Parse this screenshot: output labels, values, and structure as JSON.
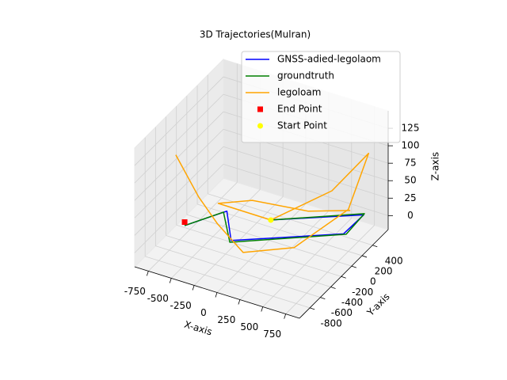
{
  "chart_data": {
    "type": "line3d",
    "title": "3D Trajectories(Mulran)",
    "x_label": "X-axis",
    "y_label": "Y-axis",
    "z_label": "Z-axis",
    "xlim": [
      -900,
      900
    ],
    "ylim": [
      -1000,
      700
    ],
    "zlim": [
      -20,
      150
    ],
    "xticks": [
      -750,
      -500,
      -250,
      0,
      250,
      500,
      750
    ],
    "yticks": [
      -800,
      -600,
      -400,
      -200,
      0,
      200,
      400
    ],
    "zticks": [
      0,
      25,
      50,
      75,
      100,
      125
    ],
    "grid": true,
    "legend": "upper right",
    "series": [
      {
        "name": "GNSS-adied-legolaom",
        "color": "#0000ff",
        "kind": "line",
        "x": [
          -40,
          690,
          680,
          -200,
          -480,
          -711
        ],
        "y": [
          100,
          600,
          230,
          -380,
          30,
          -374
        ],
        "z": [
          0,
          0,
          0,
          0,
          0,
          0
        ]
      },
      {
        "name": "groundtruth",
        "color": "#008000",
        "kind": "line",
        "x": [
          -40,
          686,
          706,
          -196,
          -500,
          -711
        ],
        "y": [
          100,
          620,
          236,
          -412,
          0,
          -374
        ],
        "z": [
          0,
          0,
          0,
          0,
          0,
          0
        ]
      },
      {
        "name": "legoloam",
        "color": "#ffa500",
        "kind": "line",
        "x": [
          -850,
          -600,
          -450,
          0,
          500,
          750,
          800,
          400,
          -40,
          -500,
          -300,
          200,
          600
        ],
        "y": [
          -300,
          -300,
          -200,
          -500,
          -400,
          200,
          500,
          500,
          100,
          -100,
          200,
          400,
          500
        ],
        "z": [
          90,
          40,
          0,
          0,
          20,
          40,
          100,
          30,
          0,
          20,
          10,
          0,
          10
        ]
      },
      {
        "name": "End Point",
        "color": "#ff0000",
        "kind": "scatter",
        "marker": "s",
        "x": [
          -711
        ],
        "y": [
          -374
        ],
        "z": [
          5
        ]
      },
      {
        "name": "Start Point",
        "color": "#ffff00",
        "kind": "scatter",
        "marker": "o",
        "x": [
          -40
        ],
        "y": [
          100
        ],
        "z": [
          0
        ]
      }
    ]
  }
}
